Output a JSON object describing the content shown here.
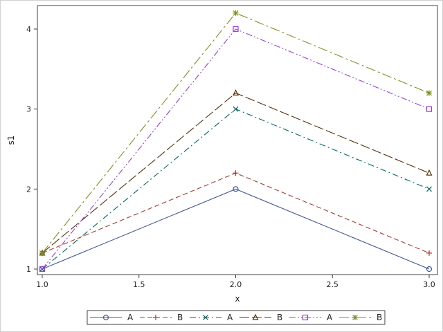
{
  "chart_data": {
    "type": "line",
    "title": "",
    "xlabel": "x",
    "ylabel": "s1",
    "xlim": [
      1.0,
      3.0
    ],
    "ylim": [
      1,
      4.2
    ],
    "x_ticks": [
      1.0,
      1.5,
      2.0,
      2.5,
      3.0
    ],
    "x_tick_labels": [
      "1.0",
      "1.5",
      "2.0",
      "2.5",
      "3.0"
    ],
    "y_ticks": [
      1,
      2,
      3,
      4
    ],
    "y_tick_labels": [
      "1",
      "2",
      "3",
      "4"
    ],
    "grid": false,
    "legend_position": "bottom",
    "x": [
      1.0,
      2.0,
      3.0
    ],
    "series": [
      {
        "name": "A",
        "values": [
          1.0,
          2.0,
          1.0
        ],
        "color": "#445694",
        "marker": "circle",
        "dash": "solid"
      },
      {
        "name": "B",
        "values": [
          1.2,
          2.2,
          1.2
        ],
        "color": "#A23A2E",
        "marker": "plus",
        "dash": "dashed"
      },
      {
        "name": "A",
        "values": [
          1.0,
          3.0,
          2.0
        ],
        "color": "#01665E",
        "marker": "x",
        "dash": "dashdot"
      },
      {
        "name": "B",
        "values": [
          1.2,
          3.2,
          2.2
        ],
        "color": "#543005",
        "marker": "triangle",
        "dash": "longdash"
      },
      {
        "name": "A",
        "values": [
          1.0,
          4.0,
          3.0
        ],
        "color": "#9D3CDB",
        "marker": "square",
        "dash": "dashdotdot"
      },
      {
        "name": "B",
        "values": [
          1.2,
          4.2,
          3.2
        ],
        "color": "#7F8E1F",
        "marker": "star",
        "dash": "longdashdot"
      }
    ]
  }
}
